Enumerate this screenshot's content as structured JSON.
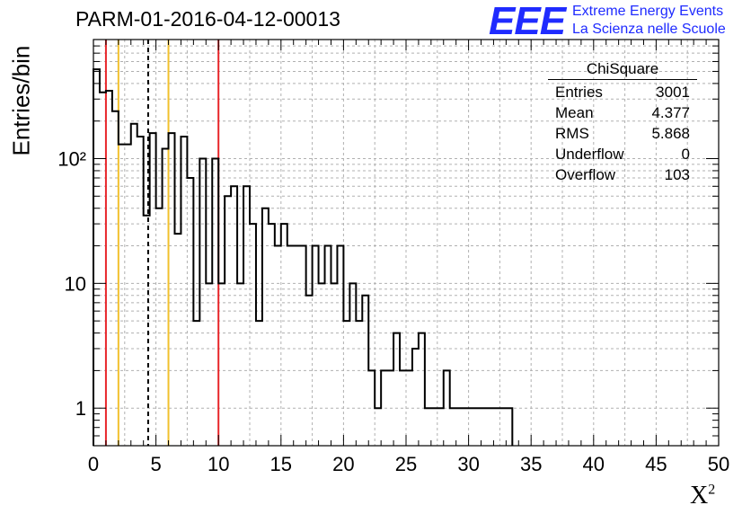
{
  "title": "PARM-01-2016-04-12-00013",
  "logo": {
    "mark": "EEE",
    "line1": "Extreme Energy Events",
    "line2": "La Scienza nelle Scuole",
    "color": "#1f2bff"
  },
  "stats": {
    "name": "ChiSquare",
    "rows": [
      {
        "label": "Entries",
        "value": "3001"
      },
      {
        "label": "Mean",
        "value": "4.377"
      },
      {
        "label": "RMS",
        "value": "5.868"
      },
      {
        "label": "Underflow",
        "value": "0"
      },
      {
        "label": "Overflow",
        "value": "103"
      }
    ]
  },
  "chart_data": {
    "type": "bar",
    "histogram": true,
    "ylabel": "Entries/bin",
    "xlabel": "X²",
    "xlim": [
      0,
      50
    ],
    "ylim": [
      0.5,
      900
    ],
    "ylog": true,
    "grid": true,
    "bin_width": 0.5,
    "x_ticks": [
      "0",
      "5",
      "10",
      "15",
      "20",
      "25",
      "30",
      "35",
      "40",
      "45",
      "50"
    ],
    "y_ticks": [
      {
        "value": 1,
        "label": "1"
      },
      {
        "value": 10,
        "label": "10"
      },
      {
        "value": 100,
        "label": "10²"
      }
    ],
    "values": [
      520,
      340,
      350,
      240,
      130,
      130,
      190,
      150,
      35,
      160,
      40,
      120,
      160,
      25,
      150,
      70,
      5,
      100,
      10,
      100,
      10,
      50,
      60,
      10,
      60,
      30,
      5,
      40,
      30,
      20,
      30,
      20,
      20,
      20,
      8,
      20,
      10,
      20,
      10,
      20,
      5,
      10,
      5,
      8,
      2,
      1,
      2,
      2,
      4,
      2,
      2,
      3,
      4,
      1,
      1,
      1,
      2,
      1,
      1,
      1,
      1,
      1,
      1,
      1,
      1,
      1,
      1
    ],
    "vlines": [
      {
        "x": 1,
        "color": "#e8262a",
        "style": "solid"
      },
      {
        "x": 2,
        "color": "#f2c12e",
        "style": "solid"
      },
      {
        "x": 4.377,
        "color": "#000000",
        "style": "dashed"
      },
      {
        "x": 6,
        "color": "#f2c12e",
        "style": "solid"
      },
      {
        "x": 10,
        "color": "#e8262a",
        "style": "solid"
      }
    ]
  }
}
